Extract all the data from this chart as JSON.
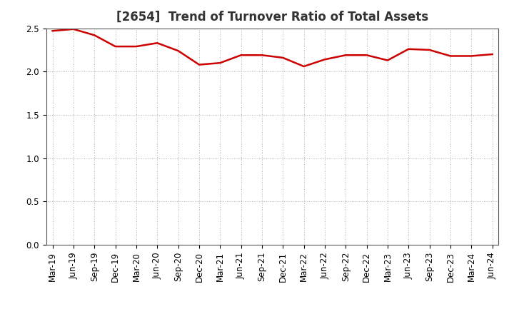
{
  "title": "[2654]  Trend of Turnover Ratio of Total Assets",
  "labels": [
    "Mar-19",
    "Jun-19",
    "Sep-19",
    "Dec-19",
    "Mar-20",
    "Jun-20",
    "Sep-20",
    "Dec-20",
    "Mar-21",
    "Jun-21",
    "Sep-21",
    "Dec-21",
    "Mar-22",
    "Jun-22",
    "Sep-22",
    "Dec-22",
    "Mar-23",
    "Jun-23",
    "Sep-23",
    "Dec-23",
    "Mar-24",
    "Jun-24"
  ],
  "values": [
    2.47,
    2.49,
    2.42,
    2.29,
    2.29,
    2.33,
    2.24,
    2.08,
    2.1,
    2.19,
    2.19,
    2.16,
    2.06,
    2.14,
    2.19,
    2.19,
    2.13,
    2.26,
    2.25,
    2.18,
    2.18,
    2.2
  ],
  "line_color": "#cc0000",
  "line_width": 1.8,
  "background_color": "#ffffff",
  "plot_bg_color": "#ffffff",
  "grid_color": "#999999",
  "ylim": [
    0.0,
    2.5
  ],
  "yticks": [
    0.0,
    0.5,
    1.0,
    1.5,
    2.0,
    2.5
  ],
  "title_fontsize": 12,
  "tick_fontsize": 8.5,
  "title_color": "#333333"
}
